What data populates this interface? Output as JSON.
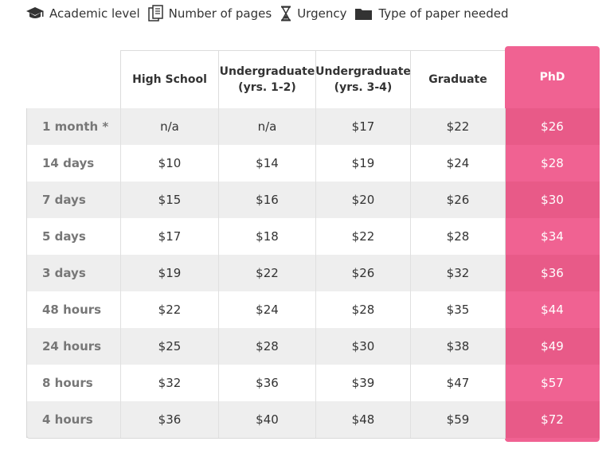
{
  "legend": [
    {
      "icon": "graduation-cap-icon",
      "label": "Academic level"
    },
    {
      "icon": "pages-icon",
      "label": "Number of pages"
    },
    {
      "icon": "hourglass-icon",
      "label": "Urgency"
    },
    {
      "icon": "folder-icon",
      "label": "Type of paper needed"
    }
  ],
  "columns": [
    "High School",
    "Undergraduate (yrs. 1-2)",
    "Undergraduate (yrs. 3-4)",
    "Graduate",
    "PhD"
  ],
  "rows": [
    {
      "label": "1 month *",
      "prices": [
        "n/a",
        "n/a",
        "$17",
        "$22",
        "$26"
      ]
    },
    {
      "label": "14 days",
      "prices": [
        "$10",
        "$14",
        "$19",
        "$24",
        "$28"
      ]
    },
    {
      "label": "7 days",
      "prices": [
        "$15",
        "$16",
        "$20",
        "$26",
        "$30"
      ]
    },
    {
      "label": "5 days",
      "prices": [
        "$17",
        "$18",
        "$22",
        "$28",
        "$34"
      ]
    },
    {
      "label": "3 days",
      "prices": [
        "$19",
        "$22",
        "$26",
        "$32",
        "$36"
      ]
    },
    {
      "label": "48 hours",
      "prices": [
        "$22",
        "$24",
        "$28",
        "$35",
        "$44"
      ]
    },
    {
      "label": "24 hours",
      "prices": [
        "$25",
        "$28",
        "$30",
        "$38",
        "$49"
      ]
    },
    {
      "label": "8 hours",
      "prices": [
        "$32",
        "$36",
        "$39",
        "$47",
        "$57"
      ]
    },
    {
      "label": "4 hours",
      "prices": [
        "$36",
        "$40",
        "$48",
        "$59",
        "$72"
      ]
    }
  ],
  "colors": {
    "accent": "#f06292",
    "accent_dark": "#e85a88",
    "stripe": "#eeeeee"
  }
}
